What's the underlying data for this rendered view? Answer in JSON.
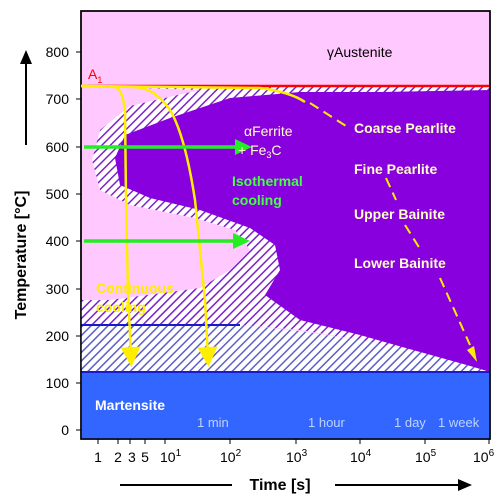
{
  "axes": {
    "y_label": "Temperature  [°C]",
    "x_label": "Time  [s]",
    "y_ticks": [
      "800",
      "700",
      "600",
      "500",
      "400",
      "300",
      "200",
      "100",
      "0"
    ],
    "x_ticks": [
      {
        "base": "1",
        "exp": ""
      },
      {
        "base": "2",
        "exp": ""
      },
      {
        "base": "3",
        "exp": ""
      },
      {
        "base": "5",
        "exp": ""
      },
      {
        "base": "10",
        "exp": "1"
      },
      {
        "base": "10",
        "exp": "2"
      },
      {
        "base": "10",
        "exp": "3"
      },
      {
        "base": "10",
        "exp": "4"
      },
      {
        "base": "10",
        "exp": "5"
      },
      {
        "base": "10",
        "exp": "6"
      }
    ],
    "y_range": [
      0,
      800
    ],
    "x_scale": "log"
  },
  "labels": {
    "a1_main": "A",
    "a1_sub": "1",
    "austenite_greek": "γ",
    "austenite": "Austenite",
    "ferrite_greek": "α",
    "ferrite": "Ferrite",
    "fe3c_plus": "+ Fe",
    "fe3c_sub": "3",
    "fe3c_c": "C",
    "coarse_pearlite": "Coarse Pearlite",
    "fine_pearlite": "Fine Pearlite",
    "upper_bainite": "Upper Bainite",
    "lower_bainite": "Lower Bainite",
    "isothermal_1": "Isothermal",
    "isothermal_2": "cooling",
    "continuous_1": "Continuous",
    "continuous_2": "cooling",
    "martensite": "Martensite",
    "t_1min": "1 min",
    "t_1hour": "1 hour",
    "t_1day": "1 day",
    "t_1week": "1 week"
  },
  "colors": {
    "austenite_bg": "#ffc8ff",
    "transformation_region": "#8800dd",
    "martensite_region": "#3366ff",
    "a1_line": "#ff0000",
    "isothermal_arrow": "#22ee22",
    "continuous_curve": "#ffee00",
    "label_text": "#ffffcc",
    "isothermal_text": "#44ff44",
    "continuous_text": "#ffee00"
  }
}
